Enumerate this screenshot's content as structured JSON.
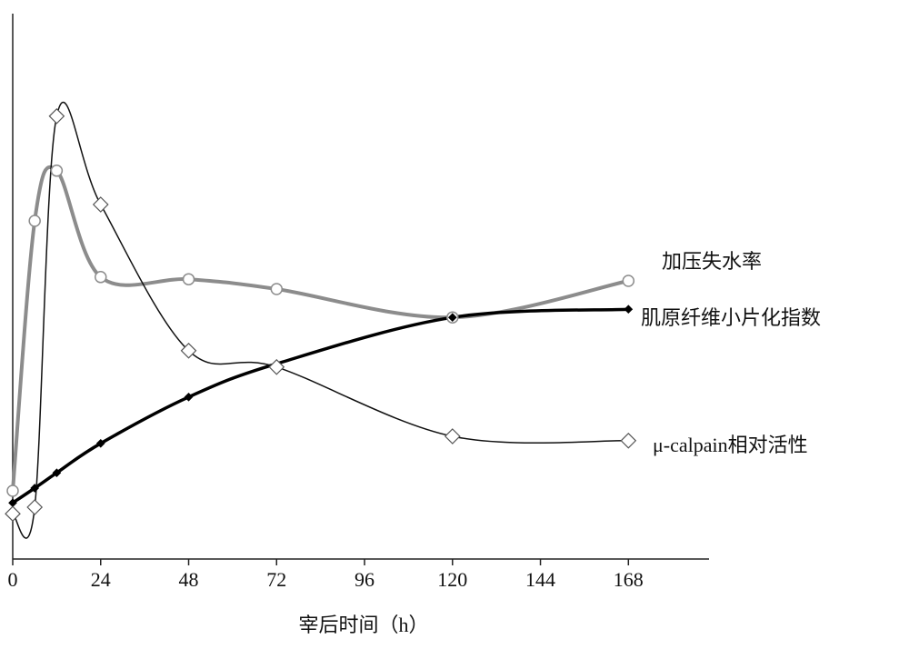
{
  "chart_data": {
    "type": "line",
    "x_label": "宰后时间（h）",
    "xlim": [
      0,
      190
    ],
    "xticks": [
      0,
      24,
      48,
      72,
      96,
      120,
      144,
      168
    ],
    "ylim": [
      0,
      100
    ],
    "smooth": true,
    "series": [
      {
        "name": "加压失水率",
        "color": "#8c8c8c",
        "line_width": 4,
        "marker": "circle",
        "x": [
          0,
          6,
          12,
          24,
          48,
          72,
          120,
          168
        ],
        "values": [
          12.5,
          62,
          71.2,
          51.7,
          51.3,
          49.5,
          44.3,
          51.0
        ]
      },
      {
        "name": "肌原纤维小片化指数",
        "color": "#000000",
        "line_width": 3.5,
        "marker": "small-diamond",
        "x": [
          0,
          6,
          12,
          24,
          48,
          72,
          120,
          168
        ],
        "values": [
          10.3,
          13,
          15.8,
          21.2,
          29.7,
          35.8,
          44.3,
          45.8
        ]
      },
      {
        "name": "μ-calpain相对活性",
        "color": "#111111",
        "line_width": 1.5,
        "marker": "diamond",
        "x": [
          0,
          6,
          12,
          24,
          48,
          72,
          120,
          168
        ],
        "values": [
          8.3,
          9.5,
          81.2,
          65,
          38.2,
          35.2,
          22.5,
          21.7
        ]
      }
    ]
  }
}
